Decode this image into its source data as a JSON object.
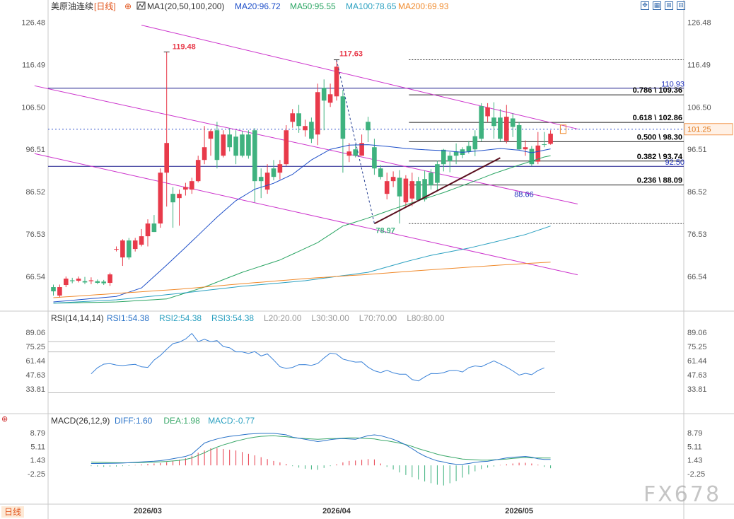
{
  "header": {
    "symbol": "美原油连续",
    "period": "[日线]",
    "ma_title": "MA1(20,50,100,200)",
    "ma20": "MA20:96.72",
    "ma50": "MA50:95.55",
    "ma100": "MA100:78.65",
    "ma200": "MA200:69.93"
  },
  "toolbar_icons": [
    "expand-icon",
    "grid-view-icon",
    "compress-icon",
    "split-view-icon"
  ],
  "period_tab": "日线",
  "watermark": "FX678",
  "colors": {
    "up": "#e83a4a",
    "down": "#3fb27f",
    "ma20": "#1e4fc9",
    "ma50": "#2aa563",
    "ma100": "#2aa0c0",
    "ma200": "#f08a2c",
    "channel": "#cc33cc",
    "fib": "#000000",
    "hline": "#1a1a8c",
    "trend": "#5a0f1e",
    "rsi": "#3a82d8",
    "diff": "#2a73c8",
    "dea": "#3aa86a"
  },
  "chart_data": [
    {
      "type": "candlestick",
      "title": "美原油连续 [日线]",
      "x_ticks": [
        "2026/03",
        "2026/04",
        "2026/05"
      ],
      "y_ticks": [
        "126.48",
        "116.49",
        "106.50",
        "96.51",
        "86.52",
        "76.53",
        "66.54"
      ],
      "ylim": [
        58,
        128.4
      ],
      "current_price": "101.25",
      "candles": [
        [
          64,
          63,
          64.6,
          62
        ],
        [
          62,
          64,
          64.6,
          61.5
        ],
        [
          64.5,
          66,
          66.5,
          64
        ],
        [
          65.6,
          65.4,
          66.2,
          64.9
        ],
        [
          65.5,
          66,
          66.5,
          65.1
        ],
        [
          65.4,
          65.1,
          66.4,
          64.7
        ],
        [
          65.4,
          65.6,
          66.3,
          64.7
        ],
        [
          65.4,
          65,
          65.8,
          64.7
        ],
        [
          65.3,
          64.9,
          65.7,
          64.5
        ],
        [
          65,
          67,
          67.4,
          64.3
        ],
        [
          73,
          73,
          73.6,
          72.4
        ],
        [
          71,
          75,
          75.3,
          69
        ],
        [
          75,
          71,
          75.6,
          70.5
        ],
        [
          73,
          75,
          75.6,
          72.4
        ],
        [
          74,
          76,
          77.7,
          73.6
        ],
        [
          76,
          79,
          80,
          73.6
        ],
        [
          79,
          77,
          81,
          77
        ],
        [
          79,
          91,
          92,
          78
        ],
        [
          91,
          98,
          119.5,
          83
        ],
        [
          86,
          84,
          87.6,
          78
        ],
        [
          85,
          86,
          87,
          78.5
        ],
        [
          87,
          87.6,
          88.6,
          85.6
        ],
        [
          87,
          89,
          89.8,
          86
        ],
        [
          89,
          94,
          95,
          88.7
        ],
        [
          94,
          97,
          102,
          93
        ],
        [
          99,
          100.8,
          101.2,
          95
        ],
        [
          101,
          94,
          103,
          92
        ],
        [
          95,
          100,
          101,
          94.6
        ],
        [
          100,
          97,
          101.5,
          96
        ],
        [
          99.5,
          95,
          101,
          93
        ],
        [
          100,
          95,
          100.8,
          94.6
        ],
        [
          100,
          95,
          101,
          94.3
        ],
        [
          101,
          89,
          101.5,
          84
        ],
        [
          90,
          89,
          92,
          85
        ],
        [
          87,
          91,
          93,
          86
        ],
        [
          92,
          90,
          94,
          89.2
        ],
        [
          91,
          93,
          94,
          89.4
        ],
        [
          93,
          101,
          102.2,
          92.6
        ],
        [
          103,
          105,
          106,
          101.6
        ],
        [
          105,
          102,
          107,
          100.4
        ],
        [
          101,
          102,
          103.5,
          99.5
        ],
        [
          103,
          99,
          104,
          98
        ],
        [
          100,
          110,
          112,
          97.5
        ],
        [
          111,
          108,
          113,
          101
        ],
        [
          107.5,
          109.5,
          112,
          106.5
        ],
        [
          109,
          116,
          117.6,
          108
        ],
        [
          109,
          99,
          110.5,
          91
        ],
        [
          95,
          96,
          98,
          93.5
        ],
        [
          96.5,
          95,
          97.7,
          94.6
        ],
        [
          95,
          98,
          100,
          95
        ],
        [
          103,
          101,
          104.2,
          98.2
        ],
        [
          97,
          92,
          99,
          90.5
        ],
        [
          92,
          90,
          92.8,
          89.4
        ],
        [
          86,
          89,
          91,
          84.7
        ],
        [
          89,
          90,
          91.3,
          87.6
        ],
        [
          89.8,
          85.4,
          91.6,
          79
        ],
        [
          84,
          89.6,
          90.4,
          82.8
        ],
        [
          84.9,
          89,
          91,
          83.1
        ],
        [
          89,
          84.5,
          90,
          84.3
        ],
        [
          89.5,
          84.7,
          91.5,
          84.2
        ],
        [
          91,
          88,
          91.8,
          87
        ],
        [
          93,
          88.6,
          93.8,
          86.8
        ],
        [
          96.4,
          93,
          96.6,
          91.3
        ],
        [
          95,
          93.7,
          95.9,
          91.1
        ],
        [
          96,
          95,
          97.9,
          93
        ],
        [
          96.5,
          95.2,
          97,
          94.4
        ],
        [
          97.3,
          96,
          98.5,
          95.5
        ],
        [
          99.6,
          96.5,
          101,
          94.9
        ],
        [
          106.7,
          99,
          107.4,
          98.4
        ],
        [
          104.3,
          106.4,
          107.4,
          103
        ],
        [
          104,
          102,
          107.6,
          99
        ],
        [
          104,
          99,
          106,
          98.4
        ],
        [
          98.5,
          104.2,
          107,
          97.9
        ],
        [
          103.8,
          101.8,
          105,
          99.4
        ],
        [
          102.2,
          96.5,
          103,
          96.4
        ],
        [
          96.5,
          97,
          98.6,
          95
        ],
        [
          96.6,
          93,
          97.3,
          92.6
        ],
        [
          93.6,
          97.4,
          100.6,
          93
        ],
        [
          97.7,
          97.6,
          100.6,
          97
        ],
        [
          97.8,
          100.2,
          101,
          97.6
        ]
      ],
      "moving_averages": [
        {
          "name": "MA20",
          "anchors": [
            [
              0,
              60.5
            ],
            [
              10,
              61.8
            ],
            [
              14,
              63.8
            ],
            [
              18,
              69.2
            ],
            [
              22,
              74.8
            ],
            [
              26,
              80.5
            ],
            [
              29,
              84.4
            ],
            [
              32,
              87.1
            ],
            [
              35,
              88.5
            ],
            [
              38,
              90.6
            ],
            [
              41,
              94
            ],
            [
              44,
              96.5
            ],
            [
              47,
              97.5
            ],
            [
              50,
              97.6
            ],
            [
              53,
              97.2
            ],
            [
              56,
              96.7
            ],
            [
              59,
              96.4
            ],
            [
              62,
              96.2
            ],
            [
              65,
              95.8
            ],
            [
              68,
              96.2
            ],
            [
              71,
              96.7
            ],
            [
              74,
              96.3
            ],
            [
              76,
              95.7
            ],
            [
              79,
              96.6
            ]
          ]
        },
        {
          "name": "MA50",
          "anchors": [
            [
              0,
              60.2
            ],
            [
              10,
              60.5
            ],
            [
              18,
              61.2
            ],
            [
              24,
              64
            ],
            [
              30,
              67.5
            ],
            [
              36,
              70.4
            ],
            [
              42,
              74.5
            ],
            [
              46,
              78.4
            ],
            [
              50,
              80.3
            ],
            [
              54,
              82.4
            ],
            [
              58,
              84.4
            ],
            [
              62,
              86.3
            ],
            [
              66,
              88.5
            ],
            [
              70,
              90.8
            ],
            [
              74,
              92.8
            ],
            [
              78,
              94.7
            ],
            [
              79,
              95
            ]
          ]
        },
        {
          "name": "MA100",
          "anchors": [
            [
              0,
              60.2
            ],
            [
              10,
              61
            ],
            [
              20,
              62.5
            ],
            [
              30,
              64.2
            ],
            [
              40,
              65.5
            ],
            [
              50,
              67.5
            ],
            [
              56,
              70
            ],
            [
              60,
              71.5
            ],
            [
              66,
              73.2
            ],
            [
              70,
              74.6
            ],
            [
              75,
              76.4
            ],
            [
              79,
              78.4
            ]
          ]
        },
        {
          "name": "MA200",
          "anchors": [
            [
              0,
              61.5
            ],
            [
              20,
              63.5
            ],
            [
              30,
              64.8
            ],
            [
              40,
              66
            ],
            [
              50,
              67
            ],
            [
              60,
              68.1
            ],
            [
              70,
              69.1
            ],
            [
              79,
              69.9
            ]
          ]
        }
      ],
      "annotations": {
        "peak_high_1": "119.48",
        "peak_high_2": "117.63",
        "trough_low": "78.97",
        "channel_value": "88.66",
        "hline_blue_1": "110.93",
        "hline_blue_2": "92.50",
        "fib_top": 117.63,
        "fib_bottom": 78.97
      },
      "fib_levels": [
        {
          "label": "0.786 \\ 109.36",
          "value": 109.36
        },
        {
          "label": "0.618 \\ 102.86",
          "value": 102.86
        },
        {
          "label": "0.500 \\ 98.30",
          "value": 98.3
        },
        {
          "label": "0.382 \\ 93.74",
          "value": 93.74
        },
        {
          "label": "0.236 \\ 88.09",
          "value": 88.09
        }
      ],
      "horizontal_lines": [
        110.93,
        92.5
      ],
      "channel_lines": [
        [
          [
            -3,
            95.5
          ],
          [
            83.3,
            66.9
          ]
        ],
        [
          [
            -3,
            111.5
          ],
          [
            83.3,
            83.6
          ]
        ],
        [
          [
            14,
            125.8
          ],
          [
            83.3,
            101.3
          ]
        ]
      ],
      "trend_line": [
        [
          51,
          78.97
        ],
        [
          71,
          94.5
        ]
      ],
      "dashed_path": [
        [
          45,
          117.6
        ],
        [
          51,
          79
        ]
      ]
    },
    {
      "type": "line",
      "title": "RSI(14,14,14)",
      "legend": [
        "RSI1:54.38",
        "RSI2:54.38",
        "RSI3:54.38",
        "L20:20.00",
        "L30:30.00",
        "L70:70.00",
        "L80:80.00"
      ],
      "y_ticks": [
        "89.06",
        "75.25",
        "61.44",
        "47.63",
        "33.81"
      ],
      "ylim": [
        26.9,
        96
      ],
      "guide_levels": [
        30,
        70,
        80
      ],
      "rsi": [
        48.5,
        54.4,
        58,
        58.5,
        57.1,
        56.6,
        57.3,
        57.8,
        55.4,
        54.8,
        62,
        66.5,
        72.5,
        78,
        79.5,
        82.5,
        88,
        80,
        82.3,
        80,
        81,
        75.2,
        74,
        70,
        70,
        68.5,
        70.3,
        66,
        68,
        62,
        55.5,
        53.8,
        54.8,
        57.5,
        57.6,
        56.8,
        58.6,
        64,
        68.8,
        67.8,
        63,
        61.4,
        60,
        60.2,
        55,
        51.5,
        49.8,
        52,
        49.5,
        48.2,
        48.2,
        42.9,
        41.6,
        45.5,
        48.8,
        48.7,
        49.7,
        51.8,
        52,
        50.3,
        54.6,
        56.3,
        55.5,
        58.4,
        61.2,
        58.2,
        55.1,
        51.4,
        47.3,
        49,
        47.7,
        51.8,
        54.4
      ]
    },
    {
      "type": "bar+line",
      "title": "MACD(26,12,9)",
      "legend": [
        "DIFF:1.60",
        "DEA:1.98",
        "MACD:-0.77"
      ],
      "y_ticks": [
        "8.79",
        "5.11",
        "1.43",
        "-2.25"
      ],
      "ylim": [
        -5.67,
        10.1
      ],
      "diff": [
        0.5,
        0.5,
        0.52,
        0.54,
        0.58,
        0.62,
        0.72,
        0.82,
        0.92,
        1.03,
        1.14,
        1.27,
        1.52,
        1.8,
        2.1,
        2.4,
        3,
        4.5,
        6,
        6.6,
        7.1,
        7.5,
        7.8,
        8,
        8.2,
        8.4,
        8.5,
        8.6,
        8.6,
        8.6,
        8.4,
        8.2,
        7.6,
        7.3,
        7,
        6.7,
        6.4,
        6.6,
        6.9,
        7.1,
        7.2,
        7.1,
        7,
        7.5,
        8,
        8.2,
        8,
        7.5,
        7,
        6.3,
        5.5,
        4.5,
        3.4,
        2.5,
        1.8,
        1.2,
        0.9,
        0.5,
        0.3,
        0.3,
        0.5,
        0.8,
        1,
        1.1,
        1.4,
        1.7,
        2,
        2.2,
        2.3,
        2.4,
        2.2,
        1.8,
        1.6,
        1.6
      ],
      "dea": [
        0.9,
        0.85,
        0.8,
        0.76,
        0.72,
        0.69,
        0.7,
        0.73,
        0.78,
        0.84,
        0.89,
        0.96,
        1.05,
        1.18,
        1.35,
        1.6,
        2,
        2.7,
        3.4,
        4.2,
        4.9,
        5.5,
        6,
        6.5,
        6.9,
        7.3,
        7.6,
        7.8,
        7.9,
        8,
        7.8,
        7.7,
        7.5,
        7.3,
        7.2,
        7.1,
        7,
        7.1,
        7.2,
        7.2,
        7.3,
        7.4,
        7.4,
        7.3,
        7.2,
        7.1,
        6.8,
        6.6,
        6.3,
        6,
        5.6,
        5.1,
        4.5,
        4,
        3.5,
        3,
        2.6,
        2.3,
        2,
        1.7,
        1.6,
        1.5,
        1.4,
        1.4,
        1.5,
        1.6,
        1.7,
        1.9,
        2,
        2.1,
        2,
        2,
        1.98,
        1.98
      ],
      "macd": [
        -0.2,
        -0.3,
        -0.4,
        -0.35,
        -0.3,
        -0.2,
        -0.15,
        0.1,
        0.25,
        0.4,
        0.5,
        0.6,
        0.9,
        1.2,
        1.5,
        1.9,
        2.6,
        3.4,
        4,
        4.6,
        4.6,
        4.4,
        4.2,
        4,
        3.6,
        3.1,
        2.7,
        2.2,
        1.7,
        1.2,
        0.8,
        0.4,
        -0.2,
        -0.6,
        -0.9,
        -1.1,
        -1.2,
        -0.7,
        -0.2,
        0.3,
        0.8,
        1.2,
        1.3,
        1.5,
        1.7,
        1.6,
        0.5,
        -0.4,
        -1.1,
        -1.9,
        -2.6,
        -3.2,
        -3.8,
        -4.3,
        -4.8,
        -5.2,
        -5.4,
        -4.8,
        -4.2,
        -3.3,
        -2.4,
        -1.6,
        -1,
        -0.6,
        -0.3,
        0.1,
        0.3,
        0.5,
        0.7,
        0.7,
        0.5,
        0.2,
        -0.4,
        -0.77
      ]
    }
  ]
}
